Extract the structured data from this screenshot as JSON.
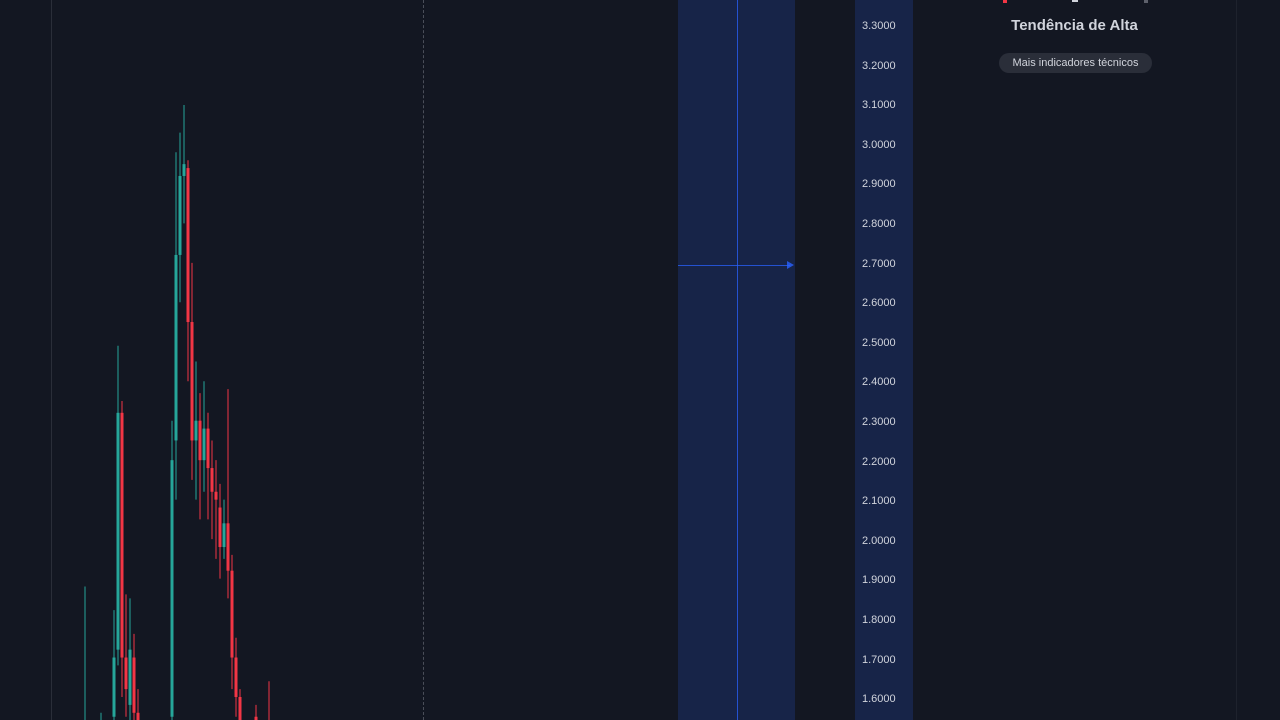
{
  "price_scale": {
    "ticks": [
      "3.3000",
      "3.2000",
      "3.1000",
      "3.0000",
      "2.9000",
      "2.8000",
      "2.7000",
      "2.6000",
      "2.5000",
      "2.4000",
      "2.3000",
      "2.2000",
      "2.1000",
      "2.0000",
      "1.9000",
      "1.8000",
      "1.7000",
      "1.6000"
    ]
  },
  "technicals": {
    "title": "Tendência de Alta",
    "more_button": "Mais indicadores técnicos"
  },
  "colors": {
    "background": "#131722",
    "up": "#26a69a",
    "down": "#f23645",
    "range_band": "#172448",
    "accent": "#2962ff"
  }
}
